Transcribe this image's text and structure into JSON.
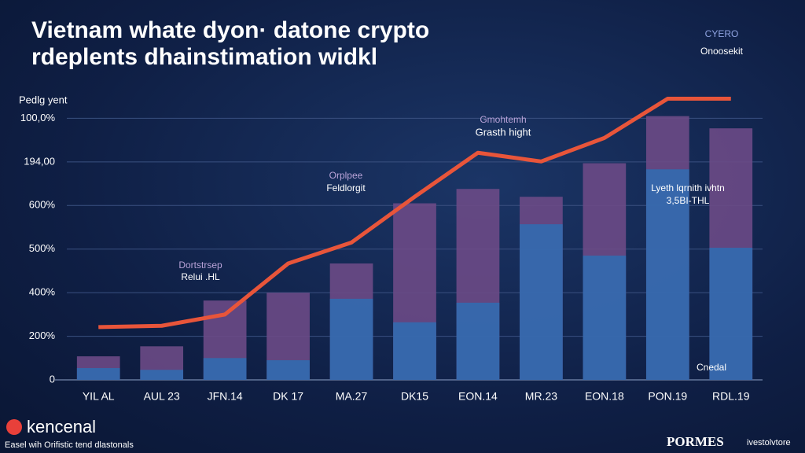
{
  "chart_data": {
    "type": "bar",
    "title": "Vietnam whate dyon· datone crypto rdeplents dhainstimation widkl",
    "y_label": "Pedlg yent",
    "categories": [
      "YIL AL",
      "AUL 23",
      "JFN.14",
      "DK 17",
      "MA.27",
      "DK15",
      "EON.14",
      "MR.23",
      "EON.18",
      "PON.19",
      "RDL.19"
    ],
    "series": [
      {
        "color": "#6b4a86",
        "values": [
          54,
          77,
          182,
          200,
          267,
          405,
          438,
          420,
          497,
          605,
          577
        ]
      },
      {
        "color": "#2f6db3",
        "values": [
          27,
          23,
          50,
          45,
          186,
          132,
          177,
          357,
          285,
          483,
          303
        ]
      },
      {
        "color": "#e8553a",
        "line": true,
        "values": [
          121,
          124,
          150,
          267,
          315,
          420,
          521,
          501,
          555,
          645,
          645
        ]
      }
    ],
    "ylim": [
      0,
      700
    ],
    "yticks": [
      0,
      {
        "value": 100,
        "label": "200%"
      },
      {
        "value": 200,
        "label": "400%"
      },
      {
        "value": 300,
        "label": "500%"
      },
      {
        "value": 400,
        "label": "600%"
      },
      {
        "value": 500,
        "label": "194,00"
      },
      {
        "value": 600,
        "label": "100,0%"
      }
    ],
    "grid": true,
    "annotations": [
      "CYERO",
      "Onoosekit",
      "Gmohtemh",
      "Grasth hight",
      "Orplpee",
      "Feldlorgit",
      "Dortstrsep",
      "Relui .HL",
      "Lyeth lqrnith ivhtn",
      "3,5BI-THL",
      "Cnedal"
    ]
  },
  "footer": {
    "brand": "kencenal",
    "tagline": "Easel wih Orifistic tend dlastonals",
    "logo": "PORMES",
    "note": "ivestolvtore"
  }
}
